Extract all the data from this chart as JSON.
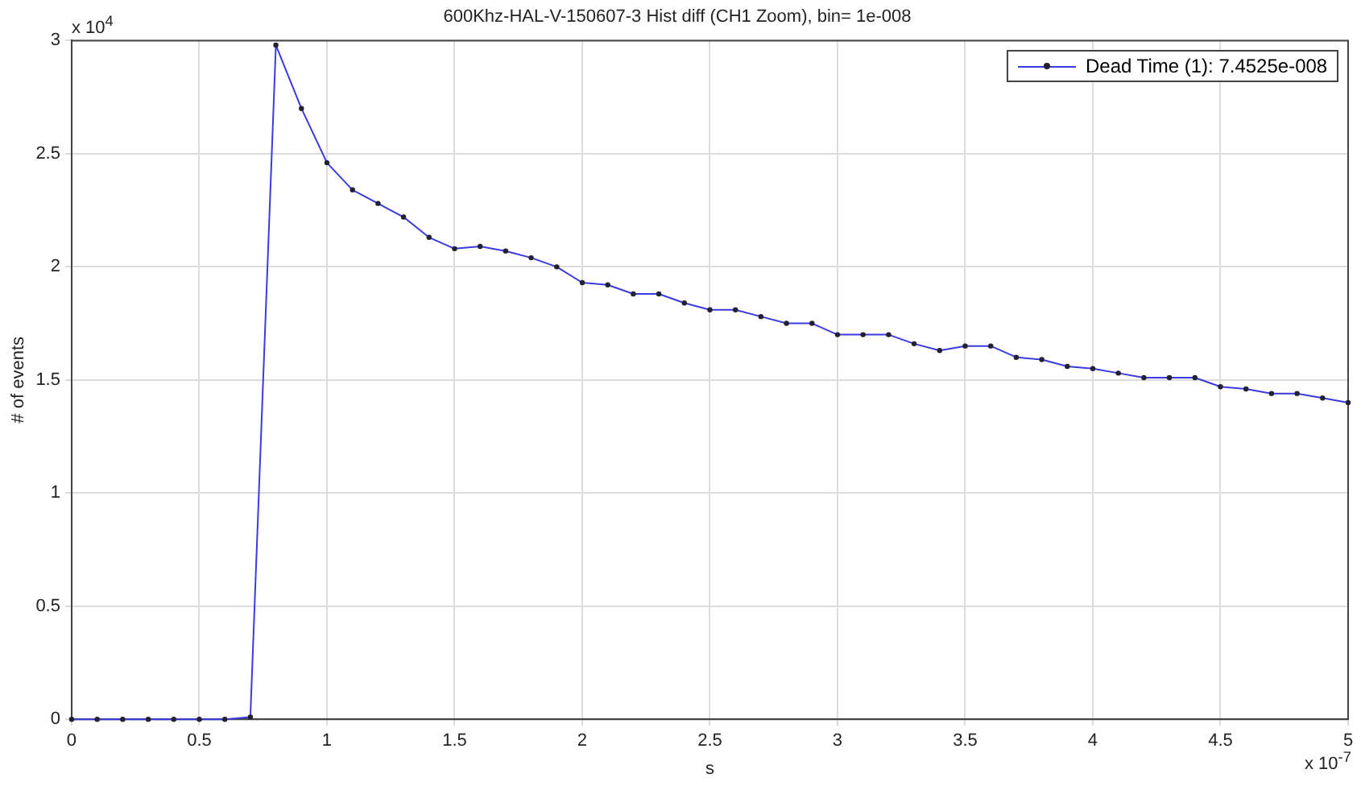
{
  "chart_data": {
    "type": "line",
    "title": "600Khz-HAL-V-150607-3 Hist diff (CH1 Zoom), bin= 1e-008",
    "xlabel": "s",
    "ylabel": "# of events",
    "annotations": [
      "x 10$^{4}$",
      "x 10$^{-7}$"
    ],
    "x": [
      0,
      0.1,
      0.2,
      0.3,
      0.4,
      0.5,
      0.6,
      0.7,
      0.8,
      0.9,
      1.0,
      1.1,
      1.2,
      1.3,
      1.4,
      1.5,
      1.6,
      1.7,
      1.8,
      1.9,
      2.0,
      2.1,
      2.2,
      2.3,
      2.4,
      2.5,
      2.6,
      2.7,
      2.8,
      2.9,
      3.0,
      3.1,
      3.2,
      3.3,
      3.4,
      3.5,
      3.6,
      3.7,
      3.8,
      3.9,
      4.0,
      4.1,
      4.2,
      4.3,
      4.4,
      4.5,
      4.6,
      4.7,
      4.8,
      4.9,
      5.0
    ],
    "series": [
      {
        "name": "Dead Time (1): 7.4525e-008",
        "color": "#3a3adf",
        "values": [
          0,
          0,
          0,
          0,
          0,
          0,
          0,
          0.01,
          2.98,
          2.7,
          2.46,
          2.34,
          2.28,
          2.22,
          2.13,
          2.08,
          2.09,
          2.07,
          2.04,
          2.0,
          1.93,
          1.92,
          1.88,
          1.88,
          1.84,
          1.81,
          1.81,
          1.78,
          1.75,
          1.75,
          1.7,
          1.7,
          1.7,
          1.66,
          1.63,
          1.65,
          1.65,
          1.6,
          1.59,
          1.56,
          1.55,
          1.53,
          1.51,
          1.51,
          1.51,
          1.47,
          1.46,
          1.44,
          1.44,
          1.42,
          1.4
        ]
      }
    ],
    "xlim": [
      0,
      5
    ],
    "xticks": [
      0,
      0.5,
      1,
      1.5,
      2,
      2.5,
      3,
      3.5,
      4,
      4.5,
      5
    ],
    "ylim": [
      0,
      3
    ],
    "yticks": [
      0,
      0.5,
      1,
      1.5,
      2,
      2.5,
      3
    ],
    "grid": true,
    "legend": "top right",
    "marker": "circle",
    "line_style": "solid"
  }
}
